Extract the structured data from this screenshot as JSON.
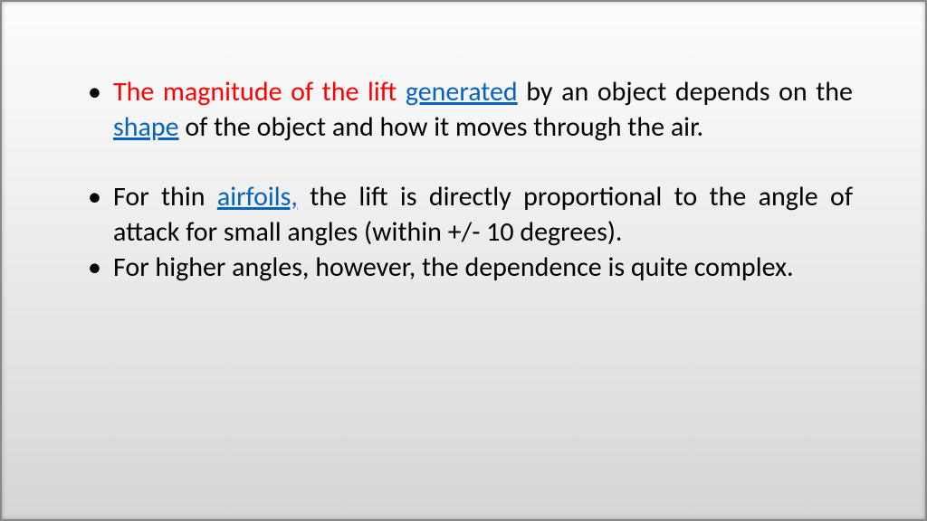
{
  "bullets": {
    "b1": {
      "red_prefix": "The magnitude of the lift ",
      "link1": "generated",
      "mid1": " by an object depends on the ",
      "link2": "shape",
      "tail": " of the object and how it moves through the air."
    },
    "b2": {
      "pre": "For thin ",
      "link": "airfoils,",
      "post": " the lift is directly proportional to the angle of attack for small angles (within +/- 10 degrees)."
    },
    "b3": "For higher angles, however, the dependence is quite complex."
  },
  "colors": {
    "red": "#ff0000",
    "link": "#0563c1",
    "text": "#000000"
  }
}
